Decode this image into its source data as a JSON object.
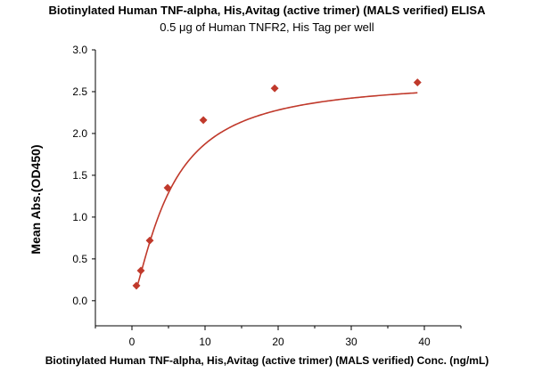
{
  "chart_data": {
    "type": "scatter",
    "title": "Biotinylated Human TNF-alpha, His,Avitag (active trimer) (MALS verified) ELISA",
    "subtitle": "0.5 μg of Human TNFR2, His Tag per well",
    "xlabel": "Biotinylated Human TNF-alpha, His,Avitag (active trimer) (MALS verified) Conc. (ng/mL)",
    "ylabel": "Mean Abs.(OD450)",
    "xlim": [
      -5,
      45
    ],
    "ylim": [
      -0.3,
      3.0
    ],
    "xticks": [
      0,
      10,
      20,
      30,
      40
    ],
    "yticks": [
      0.0,
      0.5,
      1.0,
      1.5,
      2.0,
      2.5,
      3.0
    ],
    "xtick_labels": [
      "0",
      "10",
      "20",
      "30",
      "40"
    ],
    "ytick_labels": [
      "0.0",
      "0.5",
      "1.0",
      "1.5",
      "2.0",
      "2.5",
      "3.0"
    ],
    "series": [
      {
        "x": [
          0.61,
          1.22,
          2.44,
          4.88,
          9.77,
          19.53,
          39.06
        ],
        "y": [
          0.18,
          0.36,
          0.72,
          1.35,
          2.16,
          2.54,
          2.61
        ],
        "marker": "diamond",
        "color": "#c0392b",
        "fit_curve": true
      }
    ],
    "grid": false,
    "legend": "none"
  }
}
